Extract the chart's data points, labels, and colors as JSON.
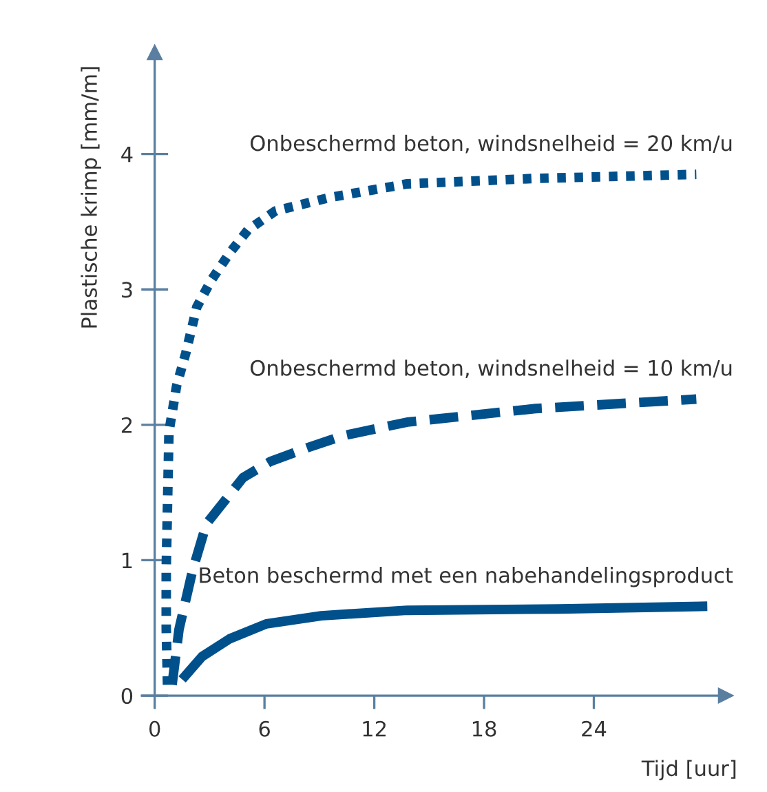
{
  "chart_data": {
    "type": "line",
    "xlabel": "Tijd [uur]",
    "ylabel": "Plastische krimp [mm/m]",
    "xlim": [
      -0.7,
      31.2
    ],
    "ylim": [
      0,
      4.75
    ],
    "xticks": [
      0,
      6,
      12,
      18,
      24
    ],
    "yticks": [
      0,
      1,
      2,
      3,
      4
    ],
    "grid": false,
    "legend": false,
    "marker": "none",
    "series": [
      {
        "name": "Onbeschermd beton, windsnelheid = 20 km/u",
        "color": "#00508c",
        "line_style": "dotted",
        "x": [
          0.7,
          0.63,
          0.63,
          0.78,
          1.2,
          1.7,
          2.3,
          3.1,
          4.1,
          5.1,
          6.6,
          9.6,
          13.8,
          20.8,
          29.6
        ],
        "values": [
          0.08,
          0.5,
          0.94,
          1.95,
          2.29,
          2.53,
          2.87,
          3.07,
          3.27,
          3.44,
          3.58,
          3.68,
          3.78,
          3.82,
          3.85
        ]
      },
      {
        "name": "Onbeschermd beton, windsnelheid = 10 km/u",
        "color": "#00508c",
        "line_style": "dashed",
        "x": [
          0.95,
          1.33,
          2.08,
          2.83,
          3.83,
          4.83,
          6.33,
          8.33,
          10.3,
          13.8,
          20.8,
          29.6
        ],
        "values": [
          0.08,
          0.49,
          0.93,
          1.27,
          1.44,
          1.61,
          1.73,
          1.83,
          1.92,
          2.02,
          2.12,
          2.19
        ]
      },
      {
        "name": "Beton beschermd met een nabehandelingsproduct",
        "color": "#00508c",
        "line_style": "solid",
        "x": [
          1.5,
          2.6,
          4.1,
          6.1,
          9.1,
          13.8,
          22.1,
          30.2
        ],
        "values": [
          0.12,
          0.29,
          0.42,
          0.53,
          0.59,
          0.63,
          0.64,
          0.66
        ]
      }
    ]
  }
}
